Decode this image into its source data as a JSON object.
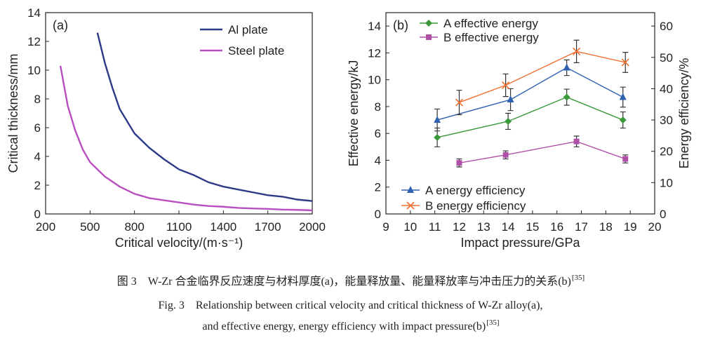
{
  "chart_data": [
    {
      "type": "line",
      "panel_label": "(a)",
      "x_label": "Critical velocity/(m·s⁻¹)",
      "y_label": "Critical thickness/mm",
      "xlim": [
        200,
        2000
      ],
      "xticks": [
        200,
        500,
        800,
        1100,
        1400,
        1700,
        2000
      ],
      "ylim": [
        0,
        14
      ],
      "yticks": [
        0,
        2,
        4,
        6,
        8,
        10,
        12,
        14
      ],
      "legend": "upper right",
      "series": [
        {
          "name": "Al plate",
          "color": "#2e3a87",
          "x": [
            550,
            600,
            650,
            700,
            800,
            900,
            1000,
            1100,
            1200,
            1300,
            1400,
            1500,
            1600,
            1700,
            1800,
            1900,
            2000
          ],
          "values": [
            12.6,
            10.5,
            8.8,
            7.3,
            5.6,
            4.6,
            3.8,
            3.1,
            2.7,
            2.2,
            1.9,
            1.7,
            1.5,
            1.3,
            1.2,
            1.0,
            0.9
          ]
        },
        {
          "name": "Steel plate",
          "color": "#b84fc0",
          "x": [
            300,
            350,
            400,
            450,
            500,
            600,
            700,
            800,
            900,
            1000,
            1100,
            1200,
            1300,
            1400,
            1500,
            1600,
            1700,
            1800,
            1900,
            2000
          ],
          "values": [
            10.3,
            7.5,
            5.8,
            4.5,
            3.6,
            2.6,
            1.9,
            1.4,
            1.1,
            0.95,
            0.8,
            0.65,
            0.55,
            0.5,
            0.42,
            0.38,
            0.35,
            0.3,
            0.28,
            0.25
          ]
        }
      ]
    },
    {
      "type": "line",
      "panel_label": "(b)",
      "x_label": "Impact pressure/GPa",
      "y_label": "Effective energy/kJ",
      "y2_label": "Energy efficiency/%",
      "xlim": [
        9,
        20
      ],
      "xticks": [
        9,
        10,
        11,
        12,
        13,
        14,
        15,
        16,
        17,
        18,
        19,
        20
      ],
      "ylim": [
        0,
        15
      ],
      "yticks": [
        0,
        2,
        4,
        6,
        8,
        10,
        12,
        14
      ],
      "y2lim": [
        0,
        64.29
      ],
      "y2ticks": [
        0,
        10,
        20,
        30,
        40,
        50,
        60
      ],
      "series": [
        {
          "name": "A effective energy",
          "color": "#3a9a3a",
          "marker": "diamond",
          "x": [
            11.1,
            14.0,
            16.4,
            18.7
          ],
          "values": [
            5.7,
            6.9,
            8.7,
            7.0
          ],
          "errors": [
            0.7,
            0.6,
            0.6,
            0.6
          ]
        },
        {
          "name": "B effective energy",
          "color": "#b04fa8",
          "marker": "square",
          "x": [
            12.0,
            13.9,
            16.8,
            18.8
          ],
          "values": [
            3.8,
            4.4,
            5.4,
            4.1
          ],
          "errors": [
            0.3,
            0.3,
            0.4,
            0.3
          ]
        },
        {
          "name": "A energy efficiency",
          "color": "#3060b0",
          "marker": "triangle",
          "axis": "y2",
          "x": [
            11.1,
            14.1,
            16.4,
            18.7
          ],
          "values": [
            30,
            36.5,
            46.7,
            37.3
          ],
          "errors": [
            3.5,
            3.5,
            2.5,
            3.2
          ]
        },
        {
          "name": "B energy efficiency",
          "color": "#f07030",
          "marker": "x",
          "axis": "y2",
          "x": [
            12.0,
            13.9,
            16.8,
            18.8
          ],
          "values": [
            35.6,
            41.1,
            51.9,
            48.4
          ],
          "errors": [
            3.9,
            3.6,
            3.6,
            3.2
          ]
        }
      ]
    }
  ],
  "caption": {
    "line1": "图 3　W-Zr 合金临界反应速度与材料厚度(a)，能量释放量、能量释放率与冲击压力的关系(b)",
    "line1_ref": "[35]",
    "line2": "Fig. 3　Relationship between critical velocity and critical thickness of W-Zr alloy(a),",
    "line3": "and effective energy, energy efficiency with impact pressure(b)",
    "line3_ref": "[35]"
  }
}
